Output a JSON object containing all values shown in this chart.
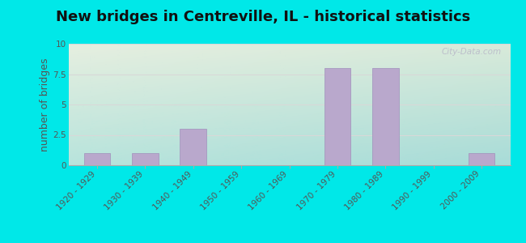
{
  "title": "New bridges in Centreville, IL - historical statistics",
  "ylabel": "number of bridges",
  "categories": [
    "1920 - 1929",
    "1930 - 1939",
    "1940 - 1949",
    "1950 - 1959",
    "1960 - 1969",
    "1970 - 1979",
    "1980 - 1989",
    "1990 - 1999",
    "2000 - 2009"
  ],
  "values": [
    1,
    1,
    3,
    0,
    0,
    8,
    8,
    0,
    1
  ],
  "bar_color": "#b9a8cc",
  "bar_edge_color": "#a090bb",
  "ylim": [
    0,
    10
  ],
  "yticks": [
    0,
    2.5,
    5,
    7.5,
    10
  ],
  "background_outer": "#00e8e8",
  "bg_top_left": "#e6efe0",
  "bg_top_right": "#daeade",
  "bg_bottom_left": "#c5e8e0",
  "bg_bottom_right": "#aadfdc",
  "grid_color": "#d8d8d8",
  "title_fontsize": 13,
  "title_color": "#111111",
  "ylabel_fontsize": 9,
  "tick_label_fontsize": 7.5,
  "tick_color": "#555555",
  "watermark_text": "City-Data.com"
}
